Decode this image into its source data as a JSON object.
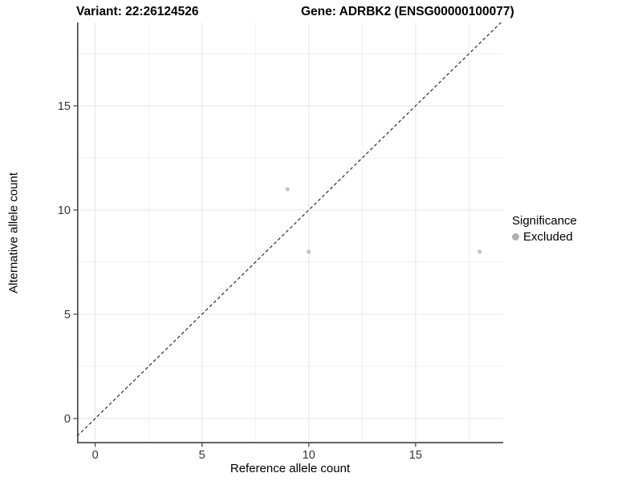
{
  "chart_data": {
    "type": "scatter",
    "title_left": "Variant: 22:26124526",
    "title_right": "Gene: ADRBK2 (ENSG00000100077)",
    "xlabel": "Reference allele count",
    "ylabel": "Alternative allele count",
    "xlim": [
      -0.85,
      19.1
    ],
    "ylim": [
      -1.19,
      19.0
    ],
    "x_major_ticks": [
      0,
      5,
      10,
      15
    ],
    "y_major_ticks": [
      0,
      5,
      10,
      15
    ],
    "x_minor_gridlines": [
      2.5,
      7.5,
      12.5,
      17.5
    ],
    "y_minor_gridlines": [
      2.5,
      7.5,
      12.5,
      17.5
    ],
    "grid": true,
    "identity_line": {
      "style": "dashed",
      "slope": 1,
      "intercept": 0,
      "color": "#1a1a1a"
    },
    "series": [
      {
        "name": "Excluded",
        "color": "#c4c4c4",
        "points": [
          {
            "x": 9,
            "y": 11
          },
          {
            "x": 10,
            "y": 8
          },
          {
            "x": 18,
            "y": 8
          }
        ]
      }
    ],
    "legend": {
      "title": "Significance",
      "position": "right",
      "items": [
        {
          "label": "Excluded",
          "color": "#b0b0b0"
        }
      ]
    }
  }
}
